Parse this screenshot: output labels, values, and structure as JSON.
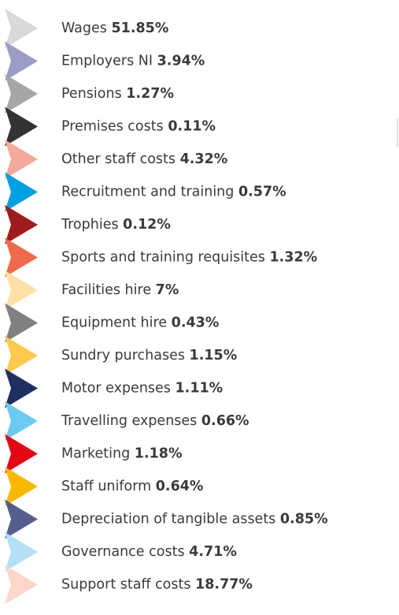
{
  "legend": {
    "items": [
      {
        "name": "Wages",
        "value": "51.85%",
        "color": "#d9d9d9"
      },
      {
        "name": "Employers NI",
        "value": "3.94%",
        "color": "#9b9dc6"
      },
      {
        "name": "Pensions",
        "value": "1.27%",
        "color": "#a6a6a6"
      },
      {
        "name": "Premises costs",
        "value": "0.11%",
        "color": "#333333"
      },
      {
        "name": "Other staff costs",
        "value": "4.32%",
        "color": "#f4a99a"
      },
      {
        "name": "Recruitment and training",
        "value": "0.57%",
        "color": "#00a0e3"
      },
      {
        "name": "Trophies",
        "value": "0.12%",
        "color": "#a01c1c"
      },
      {
        "name": "Sports and training requisites",
        "value": "1.32%",
        "color": "#ef6a4c"
      },
      {
        "name": "Facilities hire",
        "value": "7%",
        "color": "#ffe0a6"
      },
      {
        "name": "Equipment hire",
        "value": "0.43%",
        "color": "#808080"
      },
      {
        "name": "Sundry purchases",
        "value": "1.15%",
        "color": "#ffc94d"
      },
      {
        "name": "Motor expenses",
        "value": "1.11%",
        "color": "#1f2f62"
      },
      {
        "name": "Travelling expenses",
        "value": "0.66%",
        "color": "#6ccbf0"
      },
      {
        "name": "Marketing",
        "value": "1.18%",
        "color": "#e30613"
      },
      {
        "name": "Staff uniform",
        "value": "0.64%",
        "color": "#fbb800"
      },
      {
        "name": "Depreciation of tangible assets",
        "value": "0.85%",
        "color": "#565e8f"
      },
      {
        "name": "Governance costs",
        "value": "4.71%",
        "color": "#b3e0f7"
      },
      {
        "name": "Support staff costs",
        "value": "18.77%",
        "color": "#ffd5cc"
      }
    ]
  }
}
